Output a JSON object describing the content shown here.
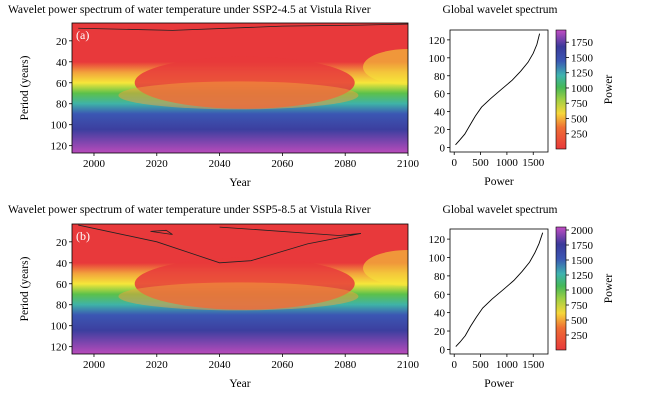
{
  "chart_data": [
    {
      "type": "heatmap",
      "panel_label": "(a)",
      "title": "Wavelet power spectrum of water temperature under SSP2-4.5 at Vistula River",
      "xlabel": "Year",
      "ylabel": "Period (years)",
      "xlim": [
        1993,
        2100
      ],
      "ylim": [
        127,
        3
      ],
      "xticks": [
        2000,
        2020,
        2040,
        2060,
        2080,
        2100
      ],
      "yticks": [
        20,
        40,
        60,
        80,
        100,
        120
      ],
      "colorbar": {
        "label": "Power",
        "range": [
          0,
          1950
        ],
        "ticks": [
          250,
          500,
          750,
          1000,
          1250,
          1500,
          1750
        ]
      },
      "global": {
        "title": "Global wavelet spectrum",
        "xlabel": "Power",
        "xticks": [
          0,
          500,
          1000,
          1500
        ],
        "yticks": [
          0,
          20,
          40,
          60,
          80,
          100,
          120
        ],
        "xlim": [
          -80,
          1780
        ],
        "ylim": [
          -5,
          131
        ],
        "period": [
          3,
          8,
          15,
          25,
          35,
          45,
          55,
          65,
          75,
          85,
          95,
          105,
          115,
          127
        ],
        "power": [
          25,
          100,
          200,
          300,
          400,
          520,
          700,
          900,
          1100,
          1260,
          1400,
          1500,
          1570,
          1620
        ]
      }
    },
    {
      "type": "heatmap",
      "panel_label": "(b)",
      "title": "Wavelet power spectrum of water temperature under SSP5-8.5 at Vistula River",
      "xlabel": "Year",
      "ylabel": "Period (years)",
      "xlim": [
        1993,
        2100
      ],
      "ylim": [
        127,
        3
      ],
      "xticks": [
        2000,
        2020,
        2040,
        2060,
        2080,
        2100
      ],
      "yticks": [
        20,
        40,
        60,
        80,
        100,
        120
      ],
      "colorbar": {
        "label": "Power",
        "range": [
          0,
          2050
        ],
        "ticks": [
          250,
          500,
          750,
          1000,
          1250,
          1500,
          1750,
          2000
        ]
      },
      "global": {
        "title": "Global wavelet spectrum",
        "xlabel": "Power",
        "xticks": [
          0,
          500,
          1000,
          1500
        ],
        "yticks": [
          0,
          20,
          40,
          60,
          80,
          100,
          120
        ],
        "xlim": [
          -80,
          1780
        ],
        "ylim": [
          -5,
          131
        ],
        "period": [
          3,
          8,
          15,
          25,
          35,
          45,
          55,
          65,
          75,
          85,
          95,
          105,
          115,
          127
        ],
        "power": [
          30,
          110,
          210,
          310,
          420,
          540,
          720,
          930,
          1130,
          1290,
          1430,
          1530,
          1610,
          1680
        ]
      }
    }
  ]
}
